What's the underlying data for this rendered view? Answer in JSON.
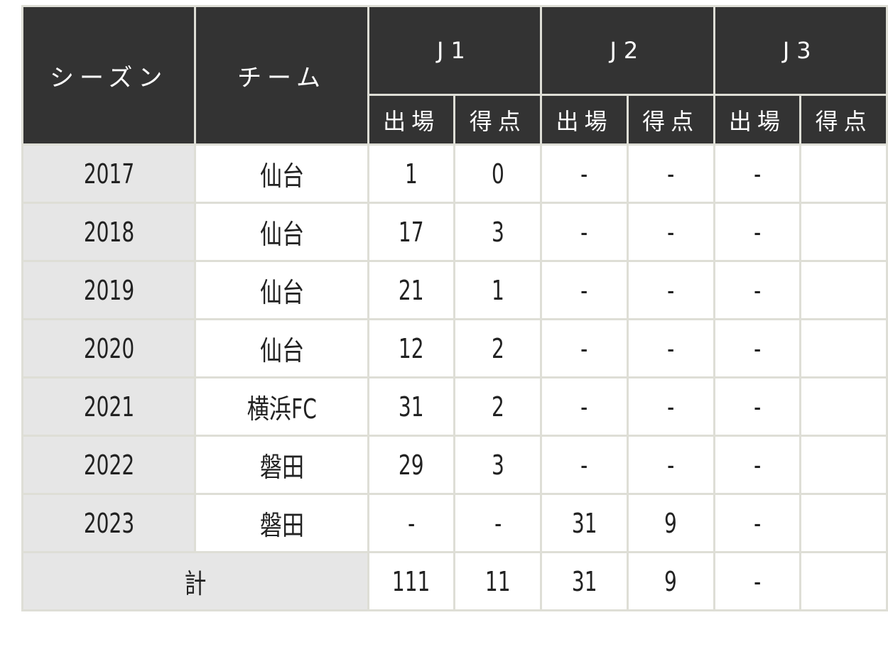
{
  "table": {
    "headers": {
      "season": "シーズン",
      "team": "チーム",
      "leagues": [
        "J1",
        "J2",
        "J3"
      ],
      "sub": [
        "出場",
        "得点"
      ]
    },
    "rows": [
      {
        "season": "2017",
        "team": "仙台",
        "j1_apps": "1",
        "j1_goals": "0",
        "j2_apps": "-",
        "j2_goals": "-",
        "j3_apps": "-"
      },
      {
        "season": "2018",
        "team": "仙台",
        "j1_apps": "17",
        "j1_goals": "3",
        "j2_apps": "-",
        "j2_goals": "-",
        "j3_apps": "-"
      },
      {
        "season": "2019",
        "team": "仙台",
        "j1_apps": "21",
        "j1_goals": "1",
        "j2_apps": "-",
        "j2_goals": "-",
        "j3_apps": "-"
      },
      {
        "season": "2020",
        "team": "仙台",
        "j1_apps": "12",
        "j1_goals": "2",
        "j2_apps": "-",
        "j2_goals": "-",
        "j3_apps": "-"
      },
      {
        "season": "2021",
        "team": "横浜FC",
        "j1_apps": "31",
        "j1_goals": "2",
        "j2_apps": "-",
        "j2_goals": "-",
        "j3_apps": "-"
      },
      {
        "season": "2022",
        "team": "磐田",
        "j1_apps": "29",
        "j1_goals": "3",
        "j2_apps": "-",
        "j2_goals": "-",
        "j3_apps": "-"
      },
      {
        "season": "2023",
        "team": "磐田",
        "j1_apps": "-",
        "j1_goals": "-",
        "j2_apps": "31",
        "j2_goals": "9",
        "j3_apps": "-"
      }
    ],
    "total": {
      "label": "計",
      "j1_apps": "111",
      "j1_goals": "11",
      "j2_apps": "31",
      "j2_goals": "9",
      "j3_apps": "-"
    }
  }
}
